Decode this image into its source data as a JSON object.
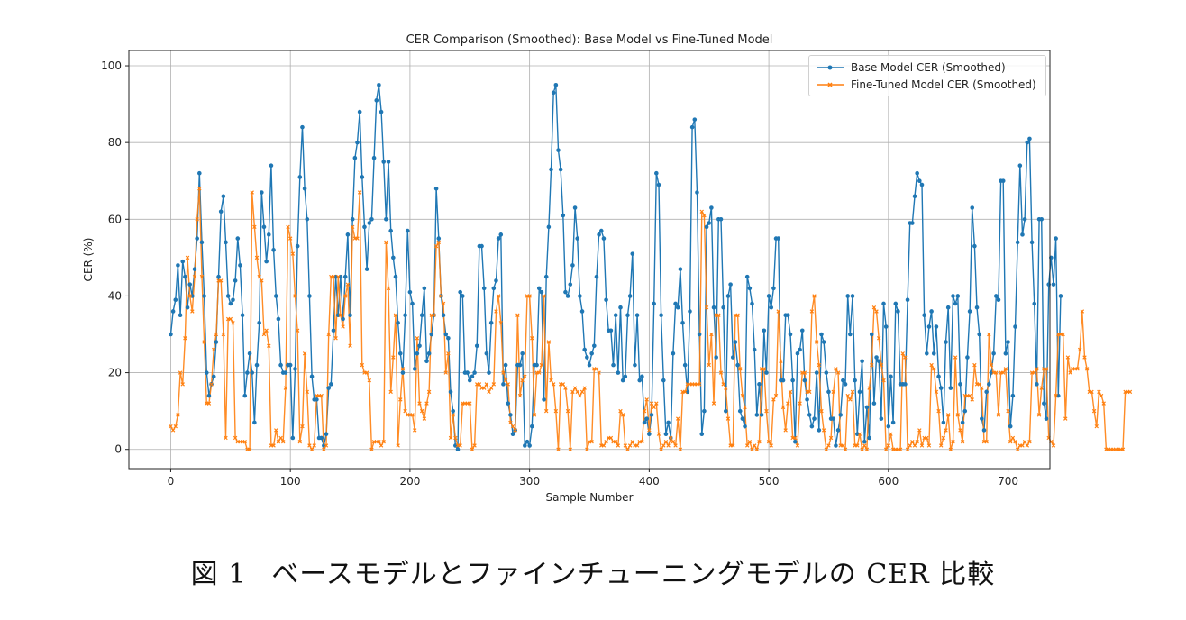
{
  "chart_data": {
    "type": "line",
    "title": "CER Comparison (Smoothed): Base Model vs Fine-Tuned Model",
    "xlabel": "Sample Number",
    "ylabel": "CER (%)",
    "xlim": [
      -35,
      735
    ],
    "ylim": [
      -5,
      104
    ],
    "xticks": [
      0,
      100,
      200,
      300,
      400,
      500,
      600,
      700
    ],
    "yticks": [
      0,
      20,
      40,
      60,
      80,
      100
    ],
    "grid": true,
    "legend_position": "top-right",
    "x_step": 2,
    "series": [
      {
        "name": "Base Model CER (Smoothed)",
        "color": "#1f77b4",
        "marker": "circle",
        "values": [
          30,
          36,
          39,
          48,
          35,
          49,
          45,
          37,
          43,
          40,
          47,
          55,
          72,
          54,
          40,
          20,
          14,
          17,
          19,
          28,
          45,
          62,
          66,
          54,
          40,
          38,
          39,
          44,
          55,
          48,
          35,
          14,
          20,
          25,
          20,
          7,
          22,
          33,
          67,
          58,
          49,
          56,
          74,
          52,
          40,
          34,
          22,
          20,
          20,
          22,
          22,
          3,
          21,
          53,
          71,
          84,
          68,
          60,
          40,
          19,
          13,
          13,
          3,
          3,
          1,
          4,
          16,
          17,
          31,
          45,
          35,
          45,
          34,
          45,
          56,
          35,
          60,
          76,
          80,
          88,
          71,
          58,
          47,
          59,
          60,
          76,
          91,
          95,
          88,
          75,
          60,
          75,
          57,
          50,
          45,
          33,
          25,
          20,
          35,
          57,
          41,
          38,
          21,
          25,
          27,
          35,
          42,
          23,
          25,
          30,
          35,
          68,
          55,
          40,
          35,
          30,
          29,
          15,
          10,
          1,
          0,
          41,
          40,
          20,
          20,
          18,
          19,
          20,
          27,
          53,
          53,
          42,
          25,
          20,
          33,
          42,
          44,
          55,
          56,
          17,
          22,
          12,
          9,
          4,
          5,
          22,
          22,
          25,
          1,
          2,
          1,
          6,
          22,
          22,
          42,
          41,
          13,
          45,
          58,
          73,
          93,
          95,
          78,
          73,
          61,
          41,
          40,
          43,
          48,
          63,
          55,
          40,
          36,
          26,
          24,
          22,
          25,
          27,
          45,
          56,
          57,
          55,
          39,
          31,
          31,
          22,
          35,
          20,
          37,
          18,
          19,
          35,
          40,
          51,
          22,
          35,
          18,
          19,
          7,
          8,
          4,
          9,
          38,
          72,
          69,
          35,
          18,
          4,
          7,
          3,
          25,
          38,
          37,
          47,
          33,
          22,
          15,
          36,
          84,
          86,
          67,
          30,
          4,
          10,
          58,
          59,
          63,
          37,
          24,
          60,
          60,
          37,
          10,
          40,
          43,
          24,
          28,
          22,
          10,
          8,
          6,
          45,
          42,
          38,
          26,
          9,
          17,
          9,
          31,
          20,
          40,
          37,
          42,
          55,
          55,
          18,
          18,
          35,
          35,
          30,
          18,
          2,
          25,
          26,
          31,
          18,
          13,
          9,
          6,
          8,
          20,
          5,
          30,
          28,
          20,
          15,
          8,
          8,
          1,
          5,
          9,
          18,
          17,
          40,
          30,
          40,
          18,
          4,
          15,
          23,
          2,
          11,
          3,
          30,
          12,
          24,
          23,
          8,
          38,
          32,
          6,
          19,
          7,
          38,
          36,
          17,
          17,
          17,
          39,
          59,
          59,
          66,
          72,
          70,
          69,
          35,
          25,
          32,
          36,
          25,
          32,
          19,
          16,
          7,
          28,
          37,
          16,
          40,
          38,
          40,
          17,
          7,
          10,
          24,
          36,
          63,
          53,
          37,
          30,
          8,
          5,
          15,
          17,
          20,
          25,
          40,
          39,
          70,
          70,
          25,
          28,
          6,
          14,
          32,
          54,
          74,
          56,
          60,
          80,
          81,
          54,
          38,
          17,
          60,
          60,
          12,
          8,
          43,
          50,
          43,
          55,
          14,
          40
        ],
        "cer_values_note": ""
      },
      {
        "name": "Fine-Tuned Model CER (Smoothed)",
        "color": "#ff7f0e",
        "marker": "x",
        "values": [
          6,
          5,
          6,
          9,
          20,
          17,
          29,
          50,
          40,
          36,
          45,
          60,
          68,
          45,
          28,
          12,
          12,
          17,
          26,
          30,
          44,
          44,
          30,
          3,
          34,
          34,
          33,
          3,
          2,
          2,
          2,
          2,
          0,
          0,
          67,
          58,
          50,
          45,
          44,
          30,
          31,
          27,
          1,
          1,
          5,
          2,
          3,
          2,
          16,
          58,
          55,
          51,
          40,
          31,
          2,
          6,
          25,
          15,
          1,
          0,
          1,
          14,
          14,
          14,
          0,
          1,
          30,
          45,
          45,
          29,
          45,
          35,
          32,
          40,
          43,
          27,
          58,
          55,
          55,
          67,
          22,
          20,
          20,
          18,
          0,
          2,
          2,
          2,
          1,
          2,
          54,
          42,
          15,
          24,
          35,
          1,
          13,
          21,
          10,
          9,
          9,
          9,
          5,
          29,
          12,
          10,
          8,
          12,
          15,
          35,
          35,
          53,
          54,
          40,
          38,
          20,
          25,
          3,
          9,
          3,
          1,
          1,
          12,
          12,
          12,
          12,
          0,
          1,
          17,
          17,
          16,
          16,
          17,
          15,
          16,
          17,
          36,
          40,
          33,
          20,
          18,
          17,
          7,
          6,
          5,
          35,
          14,
          18,
          19,
          40,
          40,
          29,
          9,
          20,
          20,
          22,
          40,
          10,
          28,
          18,
          17,
          10,
          0,
          17,
          17,
          16,
          10,
          0,
          15,
          16,
          15,
          14,
          15,
          16,
          0,
          2,
          2,
          21,
          21,
          20,
          1,
          1,
          2,
          3,
          3,
          2,
          2,
          1,
          10,
          9,
          1,
          0,
          1,
          2,
          1,
          1,
          2,
          2,
          10,
          13,
          5,
          12,
          11,
          12,
          4,
          0,
          1,
          2,
          1,
          3,
          2,
          1,
          8,
          0,
          15,
          15,
          17,
          17,
          17,
          17,
          17,
          17,
          62,
          61,
          37,
          22,
          30,
          12,
          35,
          35,
          20,
          17,
          16,
          8,
          1,
          1,
          35,
          35,
          21,
          14,
          11,
          1,
          2,
          0,
          1,
          0,
          2,
          21,
          21,
          10,
          2,
          1,
          13,
          14,
          36,
          23,
          11,
          5,
          12,
          15,
          3,
          3,
          1,
          12,
          20,
          20,
          15,
          15,
          36,
          40,
          28,
          22,
          10,
          5,
          0,
          1,
          3,
          15,
          21,
          20,
          1,
          1,
          0,
          14,
          13,
          15,
          1,
          1,
          4,
          0,
          1,
          0,
          16,
          22,
          37,
          36,
          29,
          22,
          18,
          0,
          1,
          4,
          0,
          0,
          0,
          0,
          25,
          24,
          0,
          1,
          2,
          1,
          2,
          5,
          1,
          3,
          3,
          1,
          22,
          21,
          15,
          10,
          1,
          3,
          5,
          9,
          0,
          2,
          24,
          9,
          5,
          2,
          14,
          14,
          14,
          13,
          22,
          17,
          17,
          16,
          2,
          2,
          30,
          22,
          20,
          20,
          9,
          20,
          20,
          21,
          10,
          2,
          3,
          2,
          0,
          1,
          1,
          2,
          1,
          2,
          20,
          20,
          21,
          9,
          16,
          21,
          21,
          3,
          2,
          1,
          14,
          30,
          30,
          30,
          8,
          24,
          20,
          21,
          21,
          21,
          26,
          36,
          24,
          21,
          15,
          15,
          10,
          6,
          15,
          14,
          12,
          0,
          0,
          0,
          0,
          0,
          0,
          0,
          0,
          15,
          15,
          15
        ],
        "cer_values_note": ""
      }
    ]
  },
  "caption": {
    "figure_label": "図 1",
    "text": "ベースモデルとファインチューニングモデルの CER 比較"
  }
}
